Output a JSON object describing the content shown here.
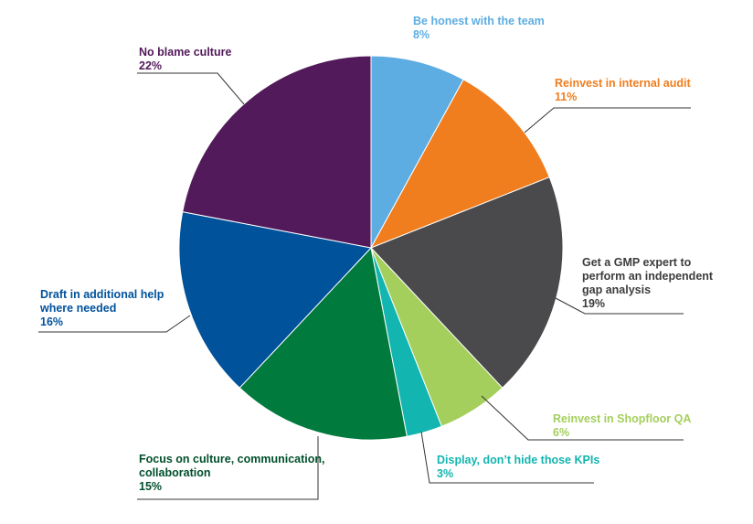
{
  "chart_data": {
    "type": "pie",
    "slices": [
      {
        "label": [
          "Be honest with the team"
        ],
        "value": 8,
        "value_label": "8%",
        "color": "#5DADE2"
      },
      {
        "label": [
          "Reinvest in internal audit"
        ],
        "value": 11,
        "value_label": "11%",
        "color": "#F07D1E"
      },
      {
        "label": [
          "Get a GMP expert to",
          "perform an independent",
          "gap analysis"
        ],
        "value": 19,
        "value_label": "19%",
        "color": "#4A4A4C"
      },
      {
        "label": [
          "Reinvest in Shopfloor QA"
        ],
        "value": 6,
        "value_label": "6%",
        "color": "#A4CF5D"
      },
      {
        "label": [
          "Display, don’t hide those KPIs"
        ],
        "value": 3,
        "value_label": "3%",
        "color": "#12B5B0"
      },
      {
        "label": [
          "Focus on culture, communication,",
          "collaboration"
        ],
        "value": 15,
        "value_label": "15%",
        "color": "#007A3D"
      },
      {
        "label": [
          "Draft in additional help",
          "where needed"
        ],
        "value": 16,
        "value_label": "16%",
        "color": "#00529B"
      },
      {
        "label": [
          "No blame culture"
        ],
        "value": 22,
        "value_label": "22%",
        "color": "#521A5A"
      }
    ],
    "label_colors": [
      "#5DADE2",
      "#F07D1E",
      "#3C3C3C",
      "#A4CF5D",
      "#12B5B0",
      "#004F2C",
      "#00529B",
      "#521A5A"
    ]
  }
}
